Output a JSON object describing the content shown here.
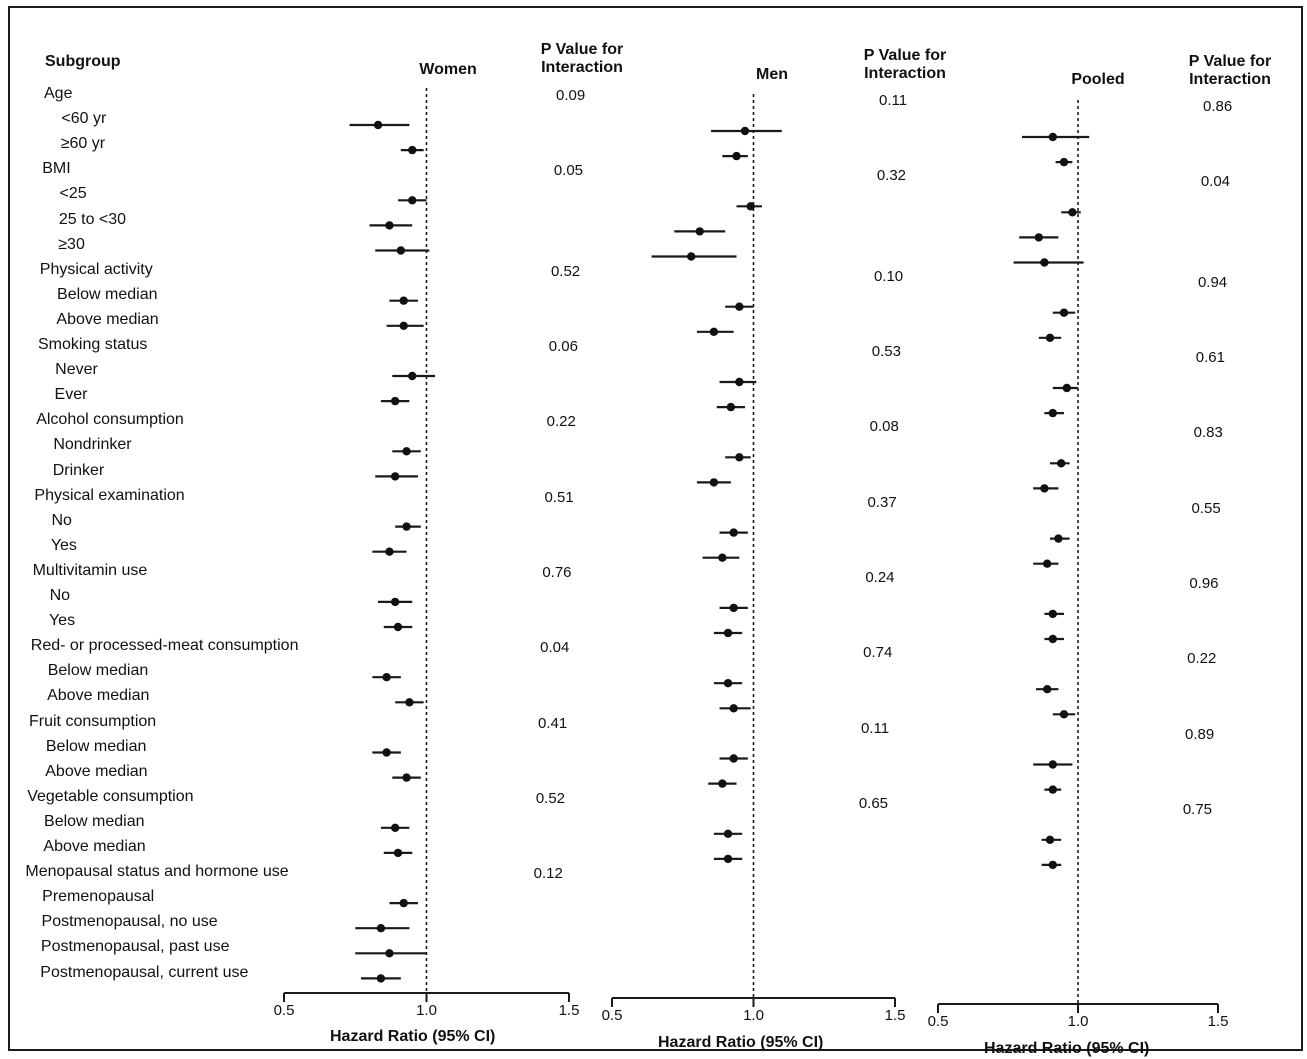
{
  "chart_data": [
    {
      "type": "forest",
      "title": "Women",
      "pvalue_header": "P Value for Interaction",
      "xlabel": "Hazard Ratio (95% CI)",
      "xlim": [
        0.5,
        1.5
      ],
      "xticks": [
        "0.5",
        "1.0",
        "1.5"
      ],
      "reference_line": 1.0,
      "rows": [
        {
          "label": "<60 yr",
          "hr": 0.83,
          "lo": 0.73,
          "hi": 0.94
        },
        {
          "label": "≥60 yr",
          "hr": 0.95,
          "lo": 0.91,
          "hi": 0.99
        },
        {
          "label": "<25",
          "hr": 0.95,
          "lo": 0.9,
          "hi": 1.0
        },
        {
          "label": "25 to <30",
          "hr": 0.87,
          "lo": 0.8,
          "hi": 0.95
        },
        {
          "label": "≥30",
          "hr": 0.91,
          "lo": 0.82,
          "hi": 1.01
        },
        {
          "label": "Below median",
          "hr": 0.92,
          "lo": 0.87,
          "hi": 0.97
        },
        {
          "label": "Above median",
          "hr": 0.92,
          "lo": 0.86,
          "hi": 0.99
        },
        {
          "label": "Never",
          "hr": 0.95,
          "lo": 0.88,
          "hi": 1.03
        },
        {
          "label": "Ever",
          "hr": 0.89,
          "lo": 0.84,
          "hi": 0.94
        },
        {
          "label": "Nondrinker",
          "hr": 0.93,
          "lo": 0.88,
          "hi": 0.98
        },
        {
          "label": "Drinker",
          "hr": 0.89,
          "lo": 0.82,
          "hi": 0.97
        },
        {
          "label": "No",
          "hr": 0.93,
          "lo": 0.89,
          "hi": 0.98
        },
        {
          "label": "Yes",
          "hr": 0.87,
          "lo": 0.81,
          "hi": 0.93
        },
        {
          "label": "No",
          "hr": 0.89,
          "lo": 0.83,
          "hi": 0.95
        },
        {
          "label": "Yes",
          "hr": 0.9,
          "lo": 0.85,
          "hi": 0.95
        },
        {
          "label": "Below median",
          "hr": 0.86,
          "lo": 0.81,
          "hi": 0.91
        },
        {
          "label": "Above median",
          "hr": 0.94,
          "lo": 0.89,
          "hi": 0.99
        },
        {
          "label": "Below median",
          "hr": 0.86,
          "lo": 0.81,
          "hi": 0.91
        },
        {
          "label": "Above median",
          "hr": 0.93,
          "lo": 0.88,
          "hi": 0.98
        },
        {
          "label": "Below median",
          "hr": 0.89,
          "lo": 0.84,
          "hi": 0.94
        },
        {
          "label": "Above median",
          "hr": 0.9,
          "lo": 0.85,
          "hi": 0.95
        },
        {
          "label": "Premenopausal",
          "hr": 0.92,
          "lo": 0.87,
          "hi": 0.97
        },
        {
          "label": "Postmenopausal, no use",
          "hr": 0.84,
          "lo": 0.75,
          "hi": 0.94
        },
        {
          "label": "Postmenopausal, past use",
          "hr": 0.87,
          "lo": 0.75,
          "hi": 1.0
        },
        {
          "label": "Postmenopausal, current use",
          "hr": 0.84,
          "lo": 0.77,
          "hi": 0.91
        }
      ],
      "pvalues": [
        "0.09",
        "0.05",
        "0.52",
        "0.06",
        "0.22",
        "0.51",
        "0.76",
        "0.04",
        "0.41",
        "0.52",
        "0.12"
      ]
    },
    {
      "type": "forest",
      "title": "Men",
      "pvalue_header": "P Value for Interaction",
      "xlabel": "Hazard Ratio (95% CI)",
      "xlim": [
        0.5,
        1.5
      ],
      "xticks": [
        "0.5",
        "1.0",
        "1.5"
      ],
      "reference_line": 1.0,
      "rows": [
        {
          "label": "<60 yr",
          "hr": 0.97,
          "lo": 0.85,
          "hi": 1.1
        },
        {
          "label": "≥60 yr",
          "hr": 0.94,
          "lo": 0.89,
          "hi": 0.98
        },
        {
          "label": "<25",
          "hr": 0.99,
          "lo": 0.94,
          "hi": 1.03
        },
        {
          "label": "25 to <30",
          "hr": 0.81,
          "lo": 0.72,
          "hi": 0.9
        },
        {
          "label": "≥30",
          "hr": 0.78,
          "lo": 0.64,
          "hi": 0.94
        },
        {
          "label": "Below median",
          "hr": 0.95,
          "lo": 0.9,
          "hi": 1.0
        },
        {
          "label": "Above median",
          "hr": 0.86,
          "lo": 0.8,
          "hi": 0.93
        },
        {
          "label": "Never",
          "hr": 0.95,
          "lo": 0.88,
          "hi": 1.01
        },
        {
          "label": "Ever",
          "hr": 0.92,
          "lo": 0.87,
          "hi": 0.97
        },
        {
          "label": "Nondrinker",
          "hr": 0.95,
          "lo": 0.9,
          "hi": 0.99
        },
        {
          "label": "Drinker",
          "hr": 0.86,
          "lo": 0.8,
          "hi": 0.92
        },
        {
          "label": "No",
          "hr": 0.93,
          "lo": 0.88,
          "hi": 0.98
        },
        {
          "label": "Yes",
          "hr": 0.89,
          "lo": 0.82,
          "hi": 0.95
        },
        {
          "label": "No",
          "hr": 0.93,
          "lo": 0.88,
          "hi": 0.98
        },
        {
          "label": "Yes",
          "hr": 0.91,
          "lo": 0.86,
          "hi": 0.96
        },
        {
          "label": "Below median",
          "hr": 0.91,
          "lo": 0.86,
          "hi": 0.96
        },
        {
          "label": "Above median",
          "hr": 0.93,
          "lo": 0.88,
          "hi": 0.99
        },
        {
          "label": "Below median",
          "hr": 0.93,
          "lo": 0.88,
          "hi": 0.98
        },
        {
          "label": "Above median",
          "hr": 0.89,
          "lo": 0.84,
          "hi": 0.94
        },
        {
          "label": "Below median",
          "hr": 0.91,
          "lo": 0.86,
          "hi": 0.96
        },
        {
          "label": "Above median",
          "hr": 0.91,
          "lo": 0.86,
          "hi": 0.96
        }
      ],
      "pvalues": [
        "0.11",
        "0.32",
        "0.10",
        "0.53",
        "0.08",
        "0.37",
        "0.24",
        "0.74",
        "0.11",
        "0.65"
      ]
    },
    {
      "type": "forest",
      "title": "Pooled",
      "pvalue_header": "P Value for Interaction",
      "xlabel": "Hazard Ratio (95% CI)",
      "xlim": [
        0.5,
        1.5
      ],
      "xticks": [
        "0.5",
        "1.0",
        "1.5"
      ],
      "reference_line": 1.0,
      "rows": [
        {
          "label": "<60 yr",
          "hr": 0.91,
          "lo": 0.8,
          "hi": 1.04
        },
        {
          "label": "≥60 yr",
          "hr": 0.95,
          "lo": 0.92,
          "hi": 0.98
        },
        {
          "label": "<25",
          "hr": 0.98,
          "lo": 0.94,
          "hi": 1.01
        },
        {
          "label": "25 to <30",
          "hr": 0.86,
          "lo": 0.79,
          "hi": 0.93
        },
        {
          "label": "≥30",
          "hr": 0.88,
          "lo": 0.77,
          "hi": 1.02
        },
        {
          "label": "Below median",
          "hr": 0.95,
          "lo": 0.91,
          "hi": 0.99
        },
        {
          "label": "Above median",
          "hr": 0.9,
          "lo": 0.86,
          "hi": 0.94
        },
        {
          "label": "Never",
          "hr": 0.96,
          "lo": 0.91,
          "hi": 1.0
        },
        {
          "label": "Ever",
          "hr": 0.91,
          "lo": 0.88,
          "hi": 0.95
        },
        {
          "label": "Nondrinker",
          "hr": 0.94,
          "lo": 0.9,
          "hi": 0.97
        },
        {
          "label": "Drinker",
          "hr": 0.88,
          "lo": 0.84,
          "hi": 0.93
        },
        {
          "label": "No",
          "hr": 0.93,
          "lo": 0.9,
          "hi": 0.97
        },
        {
          "label": "Yes",
          "hr": 0.89,
          "lo": 0.84,
          "hi": 0.93
        },
        {
          "label": "No",
          "hr": 0.91,
          "lo": 0.88,
          "hi": 0.95
        },
        {
          "label": "Yes",
          "hr": 0.91,
          "lo": 0.88,
          "hi": 0.95
        },
        {
          "label": "Below median",
          "hr": 0.89,
          "lo": 0.85,
          "hi": 0.93
        },
        {
          "label": "Above median",
          "hr": 0.95,
          "lo": 0.91,
          "hi": 0.99
        },
        {
          "label": "Below median",
          "hr": 0.91,
          "lo": 0.84,
          "hi": 0.98
        },
        {
          "label": "Above median",
          "hr": 0.91,
          "lo": 0.88,
          "hi": 0.94
        },
        {
          "label": "Below median",
          "hr": 0.9,
          "lo": 0.87,
          "hi": 0.94
        },
        {
          "label": "Above median",
          "hr": 0.91,
          "lo": 0.87,
          "hi": 0.94
        }
      ],
      "pvalues": [
        "0.86",
        "0.04",
        "0.94",
        "0.61",
        "0.83",
        "0.55",
        "0.96",
        "0.22",
        "0.89",
        "0.75"
      ]
    }
  ],
  "subgroup_header": "Subgroup",
  "subgroups": [
    {
      "name": "Age",
      "levels": [
        "<60 yr",
        "≥60 yr"
      ]
    },
    {
      "name": "BMI",
      "levels": [
        "<25",
        "25 to <30",
        "≥30"
      ]
    },
    {
      "name": "Physical activity",
      "levels": [
        "Below median",
        "Above median"
      ]
    },
    {
      "name": "Smoking status",
      "levels": [
        "Never",
        "Ever"
      ]
    },
    {
      "name": "Alcohol consumption",
      "levels": [
        "Nondrinker",
        "Drinker"
      ]
    },
    {
      "name": "Physical examination",
      "levels": [
        "No",
        "Yes"
      ]
    },
    {
      "name": "Multivitamin use",
      "levels": [
        "No",
        "Yes"
      ]
    },
    {
      "name": "Red- or processed-meat consumption",
      "levels": [
        "Below median",
        "Above median"
      ]
    },
    {
      "name": "Fruit consumption",
      "levels": [
        "Below median",
        "Above median"
      ]
    },
    {
      "name": "Vegetable consumption",
      "levels": [
        "Below median",
        "Above median"
      ]
    },
    {
      "name": "Menopausal status and hormone use",
      "levels": [
        "Premenopausal",
        "Postmenopausal, no use",
        "Postmenopausal, past use",
        "Postmenopausal, current use"
      ]
    }
  ],
  "colors": {
    "marker": "#111111",
    "line": "#1a1a1a",
    "background": "#ffffff"
  }
}
